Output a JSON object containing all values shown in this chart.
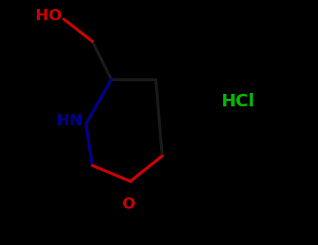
{
  "background_color": "#000000",
  "bond_color": "#1a1a1a",
  "O_bond_color": "#cc0000",
  "N_bond_color": "#00008b",
  "O_color": "#cc0000",
  "N_color": "#00008b",
  "HCl_color": "#00bb00",
  "HO_color": "#cc0000",
  "bond_width": 3.0,
  "fig_width": 4.55,
  "fig_height": 3.5,
  "dpi": 100,
  "HCl_text": "HCl",
  "HO_text": "HO",
  "NH_text": "HN",
  "O_text": "O"
}
